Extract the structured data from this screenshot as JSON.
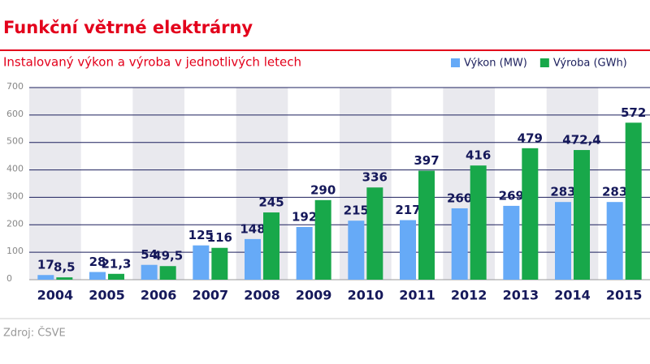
{
  "chart_data": {
    "type": "bar",
    "title": "Funkční větrné elektrárny",
    "subtitle": "Instalovaný výkon a výroba v jednotlivých letech",
    "source": "Zdroj: ČSVE",
    "categories": [
      "2004",
      "2005",
      "2006",
      "2007",
      "2008",
      "2009",
      "2010",
      "2011",
      "2012",
      "2013",
      "2014",
      "2015"
    ],
    "series": [
      {
        "name": "Výkon (MW)",
        "color": "#66aaf7",
        "values": [
          17,
          28,
          54,
          125,
          148,
          192,
          215,
          217,
          260,
          269,
          283,
          283
        ],
        "value_labels": [
          "17",
          "28",
          "54",
          "125",
          "148",
          "192",
          "215",
          "217",
          "260",
          "269",
          "283",
          "283"
        ]
      },
      {
        "name": "Výroba (GWh)",
        "color": "#18a84a",
        "values": [
          8.5,
          21.3,
          49.5,
          116,
          245,
          290,
          336,
          397,
          416,
          479,
          472.4,
          572
        ],
        "value_labels": [
          "8,5",
          "21,3",
          "49,5",
          "116",
          "245",
          "290",
          "336",
          "397",
          "416",
          "479",
          "472,4",
          "572"
        ]
      }
    ],
    "ylim": [
      0,
      700
    ],
    "yticks": [
      0,
      100,
      200,
      300,
      400,
      500,
      600,
      700
    ],
    "grid": true
  }
}
